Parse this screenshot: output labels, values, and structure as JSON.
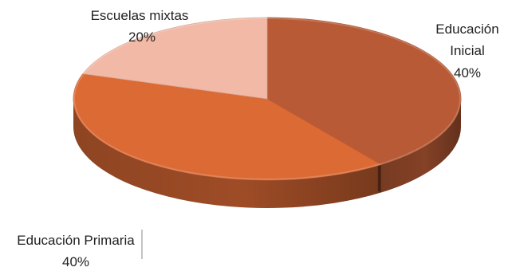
{
  "chart_data": {
    "type": "pie",
    "title": "",
    "style": "3d",
    "slices": [
      {
        "label": "Educación Inicial",
        "value": 40,
        "value_label": "40%",
        "color": "#b85a35"
      },
      {
        "label": "Educación Primaria",
        "value": 40,
        "value_label": "40%",
        "color": "#dc6a35"
      },
      {
        "label": "Escuelas mixtas",
        "value": 20,
        "value_label": "20%",
        "color": "#f1b9a6"
      }
    ]
  }
}
